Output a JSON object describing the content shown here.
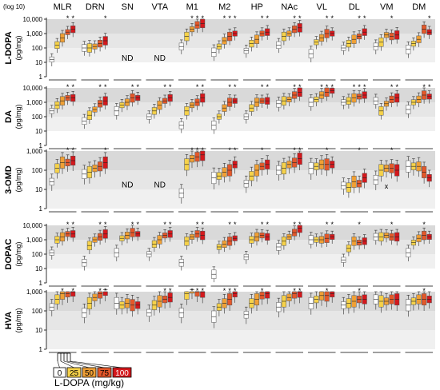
{
  "chart_data": {
    "type": "box",
    "log_label": "(log 10)",
    "regions": [
      "MLR",
      "DRN",
      "SN",
      "VTA",
      "M1",
      "M2",
      "HP",
      "NAc",
      "VL",
      "DL",
      "VM",
      "DM"
    ],
    "y_ticks": [
      "10,000",
      "1,000",
      "100",
      "10",
      "1"
    ],
    "y_ticks_short": [
      "1,000",
      "100",
      "10",
      "1"
    ],
    "doses": [
      "0",
      "25",
      "50",
      "75",
      "100"
    ],
    "dose_colors": [
      "#ffffff",
      "#f6d24a",
      "#f0a035",
      "#e4582a",
      "#d4181c"
    ],
    "legend_label": "L-DOPA (mg/kg)",
    "nd_label": "ND",
    "x_label": "x",
    "sig_mark": "*",
    "panels": [
      {
        "name": "L-DOPA",
        "unit": "(pg/mg)",
        "log_max": 4,
        "nd": [
          "SN",
          "VTA"
        ],
        "medians": {
          "MLR": [
            1.2,
            2.2,
            2.7,
            3.1,
            3.3
          ],
          "DRN": [
            2.0,
            2.0,
            2.1,
            2.3,
            2.5
          ],
          "M1": [
            2.1,
            2.8,
            3.3,
            3.6,
            3.7
          ],
          "M2": [
            1.7,
            2.1,
            2.5,
            2.8,
            3.0
          ],
          "HP": [
            1.8,
            2.3,
            2.6,
            3.0,
            3.1
          ],
          "NAc": [
            2.2,
            2.8,
            3.0,
            3.3,
            3.4
          ],
          "VL": [
            1.6,
            2.4,
            2.7,
            3.0,
            3.0
          ],
          "DL": [
            2.0,
            2.3,
            2.6,
            2.8,
            3.1
          ],
          "VM": [
            2.1,
            2.4,
            2.9,
            2.8,
            2.9
          ],
          "DM": [
            1.9,
            2.3,
            2.6,
            3.3,
            3.1
          ]
        },
        "stars": {
          "MLR": [
            3,
            4
          ],
          "DRN": [
            4
          ],
          "M1": [
            2,
            3,
            4
          ],
          "M2": [
            2,
            3,
            4
          ],
          "HP": [
            3,
            4
          ],
          "NAc": [
            3,
            4
          ],
          "VL": [
            3,
            4
          ],
          "DL": [
            3,
            4
          ],
          "VM": [
            3
          ],
          "DM": [
            4
          ]
        }
      },
      {
        "name": "DA",
        "unit": "(pg/mg)",
        "log_max": 4,
        "nd": [],
        "medians": {
          "MLR": [
            2.4,
            2.8,
            3.1,
            3.3,
            3.3
          ],
          "DRN": [
            1.7,
            2.1,
            2.5,
            2.9,
            3.1
          ],
          "SN": [
            2.4,
            2.8,
            3.0,
            3.3,
            3.3
          ],
          "VTA": [
            2.0,
            2.4,
            2.8,
            3.1,
            3.3
          ],
          "M1": [
            1.4,
            2.4,
            2.8,
            3.0,
            3.3
          ],
          "M2": [
            1.4,
            2.0,
            2.6,
            3.0,
            3.1
          ],
          "HP": [
            2.0,
            2.6,
            3.0,
            3.1,
            3.1
          ],
          "NAc": [
            2.9,
            3.1,
            3.2,
            3.5,
            3.7
          ],
          "VL": [
            3.0,
            3.2,
            3.5,
            3.7,
            3.8
          ],
          "DL": [
            3.0,
            3.1,
            3.3,
            3.4,
            3.5
          ],
          "VM": [
            3.1,
            2.4,
            2.9,
            3.2,
            3.3
          ],
          "DM": [
            2.5,
            3.0,
            3.2,
            3.5,
            3.4
          ]
        },
        "stars": {
          "MLR": [
            3,
            4
          ],
          "DRN": [
            3,
            4
          ],
          "SN": [
            3,
            4
          ],
          "VTA": [
            3,
            4
          ],
          "M1": [
            3,
            4
          ],
          "M2": [
            3,
            4
          ],
          "HP": [
            3,
            4
          ],
          "NAc": [
            3,
            4
          ],
          "VL": [
            2,
            3,
            4
          ],
          "DL": [
            2,
            3,
            4
          ],
          "VM": [
            3,
            4
          ],
          "DM": [
            3,
            4
          ]
        }
      },
      {
        "name": "3-OMD",
        "unit": "(pg/mg)",
        "log_max": 3,
        "nd": [
          "SN",
          "VTA"
        ],
        "medians": {
          "MLR": [
            1.4,
            2.1,
            2.4,
            2.4,
            2.5
          ],
          "DRN": [
            1.8,
            1.9,
            2.1,
            2.2,
            2.4
          ],
          "M1": [
            0.8,
            2.3,
            2.6,
            2.7,
            2.8
          ],
          "M2": [
            1.6,
            1.7,
            1.9,
            2.0,
            2.3
          ],
          "HP": [
            1.3,
            1.7,
            2.0,
            2.2,
            2.3
          ],
          "NAc": [
            2.0,
            2.1,
            2.3,
            2.4,
            2.6
          ],
          "VL": [
            2.1,
            2.2,
            2.3,
            2.3,
            2.3
          ],
          "DL": [
            1.2,
            1.1,
            1.4,
            1.3,
            1.6
          ],
          "VM": [
            1.5,
            2.0,
            2.1,
            2.1,
            2.0
          ],
          "DM": [
            2.2,
            2.2,
            2.2,
            1.9,
            1.6
          ]
        },
        "stars": {
          "MLR": [
            3,
            4
          ],
          "DRN": [
            4
          ],
          "M1": [
            2,
            3,
            4
          ],
          "M2": [
            3,
            4
          ],
          "HP": [
            3
          ],
          "NAc": [
            3,
            4
          ],
          "VL": [
            3
          ],
          "DL": [
            3
          ],
          "VM": [
            3
          ]
        }
      },
      {
        "name": "DOPAC",
        "unit": "(pg/mg)",
        "log_max": 4,
        "nd": [],
        "medians": {
          "MLR": [
            2.1,
            3.0,
            3.2,
            3.4,
            3.4
          ],
          "DRN": [
            1.4,
            2.6,
            3.0,
            3.2,
            3.4
          ],
          "SN": [
            2.1,
            3.1,
            3.3,
            3.5,
            3.4
          ],
          "VTA": [
            2.0,
            2.7,
            3.0,
            3.3,
            3.4
          ],
          "M1": [
            1.4,
            2.9,
            3.2,
            3.4,
            3.3
          ],
          "M2": [
            0.6,
            2.5,
            2.7,
            2.9,
            3.1
          ],
          "HP": [
            1.8,
            3.0,
            3.2,
            3.3,
            3.2
          ],
          "NAc": [
            2.5,
            2.9,
            3.2,
            3.5,
            3.8
          ],
          "VL": [
            3.0,
            3.0,
            3.0,
            3.1,
            3.2
          ],
          "DL": [
            1.6,
            2.4,
            2.9,
            2.8,
            2.9
          ],
          "VM": [
            3.2,
            3.2,
            3.3,
            3.2,
            3.2
          ],
          "DM": [
            2.1,
            2.8,
            3.1,
            3.3,
            3.2
          ]
        },
        "stars": {
          "MLR": [
            3,
            4
          ],
          "DRN": [
            3,
            4
          ],
          "SN": [
            3,
            4
          ],
          "VTA": [
            3,
            4
          ],
          "M1": [
            3,
            4
          ],
          "M2": [
            3,
            4
          ],
          "HP": [
            3,
            4
          ],
          "NAc": [
            3,
            4
          ],
          "VL": [
            3,
            4
          ],
          "DL": [
            3
          ],
          "VM": [
            3
          ],
          "DM": [
            3
          ]
        }
      },
      {
        "name": "HVA",
        "unit": "(pg/mg)",
        "log_max": 3,
        "nd": [],
        "medians": {
          "MLR": [
            2.2,
            2.6,
            2.9,
            2.9,
            3.0
          ],
          "DRN": [
            1.9,
            2.4,
            2.7,
            2.9,
            3.1
          ],
          "SN": [
            2.4,
            2.3,
            2.4,
            2.3,
            2.3
          ],
          "VTA": [
            1.9,
            2.3,
            2.5,
            2.6,
            2.7
          ],
          "M1": [
            1.9,
            2.9,
            3.1,
            3.0,
            3.0
          ],
          "M2": [
            1.7,
            2.2,
            2.4,
            2.6,
            2.9
          ],
          "HP": [
            1.8,
            2.4,
            2.6,
            2.8,
            2.9
          ],
          "NAc": [
            2.2,
            2.5,
            2.7,
            2.9,
            3.0
          ],
          "VL": [
            2.4,
            2.6,
            2.8,
            2.8,
            2.9
          ],
          "DL": [
            2.3,
            2.4,
            2.5,
            2.6,
            2.6
          ],
          "VM": [
            2.6,
            2.5,
            2.5,
            2.6,
            2.6
          ],
          "DM": [
            2.3,
            2.5,
            2.6,
            2.6,
            2.6
          ]
        },
        "stars": {
          "MLR": [
            2,
            4
          ],
          "DRN": [
            3,
            4
          ],
          "VTA": [
            3,
            4
          ],
          "M1": [
            2,
            3,
            4
          ],
          "M2": [
            2,
            3,
            4
          ],
          "HP": [
            3
          ],
          "NAc": [
            3,
            4
          ],
          "VL": [
            3
          ],
          "DL": [
            3
          ],
          "DM": [
            3
          ]
        }
      }
    ]
  }
}
